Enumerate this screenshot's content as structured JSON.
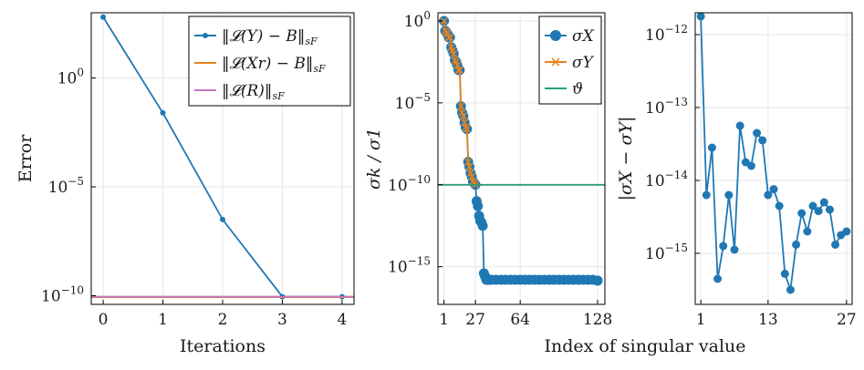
{
  "chart_data": [
    {
      "type": "line",
      "id": "iterations-error",
      "xlabel": "Iterations",
      "ylabel": "Error",
      "yscale": "log",
      "xlim": [
        -0.2,
        4.2
      ],
      "ylim": [
        -10.4,
        3.0
      ],
      "xticks": [
        0,
        1,
        2,
        3,
        4
      ],
      "xtick_labels": [
        "0",
        "1",
        "2",
        "3",
        "4"
      ],
      "yticks": [
        -10,
        -5,
        0
      ],
      "ytick_base": "10",
      "ytick_exps": [
        "−10",
        "−5",
        "0"
      ],
      "series": [
        {
          "name": "‖𝓛(Y) − B‖sF",
          "color": "#1f78b4",
          "x": [
            0,
            1,
            2,
            3,
            4
          ],
          "log10": [
            2.8,
            -1.6,
            -6.5,
            -10.05,
            -10.05
          ],
          "markers": true
        },
        {
          "name": "‖𝓛(Xr) − B‖sF",
          "color": "#e6821e",
          "x": [
            -0.2,
            4.2
          ],
          "log10": [
            -10.07,
            -10.07
          ],
          "markers": false
        },
        {
          "name": "‖𝓛(R)‖sF",
          "color": "#c875c4",
          "x": [
            -0.2,
            4.2
          ],
          "log10": [
            -10.05,
            -10.05
          ],
          "markers": false
        }
      ],
      "legend": [
        "‖𝓛(Y) − B‖",
        "‖𝓛(Xr) − B‖",
        "‖𝓛(R)‖"
      ],
      "legend_sub": "sF",
      "legend_position": "top-right"
    },
    {
      "type": "scatter",
      "id": "singular-values",
      "xlabel": "",
      "ylabel": "σk / σ1",
      "yscale": "log",
      "xlim": [
        -4,
        134
      ],
      "ylim": [
        -17.3,
        0.5
      ],
      "xticks": [
        1,
        27,
        64,
        128
      ],
      "xtick_labels": [
        "1",
        "27",
        "64",
        "128"
      ],
      "yticks": [
        -15,
        -10,
        -5,
        0
      ],
      "ytick_base": "10",
      "ytick_exps": [
        "−15",
        "−10",
        "−5",
        "0"
      ],
      "threshold": -10,
      "series": [
        {
          "name": "σX",
          "color": "#1f78b4",
          "x": [
            1,
            2,
            3,
            4,
            5,
            6,
            7,
            8,
            9,
            10,
            11,
            12,
            13,
            14,
            15,
            16,
            17,
            18,
            19,
            20,
            21,
            22,
            23,
            24,
            25,
            26,
            27,
            28,
            29,
            30,
            31,
            32,
            33,
            34,
            35,
            36,
            37,
            38,
            40,
            44,
            48,
            52,
            56,
            60,
            64,
            68,
            72,
            76,
            80,
            84,
            88,
            92,
            96,
            100,
            104,
            108,
            112,
            116,
            120,
            124,
            128
          ],
          "log10": [
            0.0,
            -0.6,
            -0.7,
            -0.8,
            -1.0,
            -1.0,
            -1.6,
            -1.8,
            -2.0,
            -2.4,
            -2.5,
            -2.7,
            -3.0,
            -3.0,
            -5.2,
            -5.6,
            -5.8,
            -6.2,
            -6.5,
            -6.6,
            -8.6,
            -8.9,
            -9.3,
            -9.5,
            -9.8,
            -9.9,
            -10.0,
            -11.0,
            -11.3,
            -11.9,
            -12.2,
            -12.3,
            -12.5,
            -15.4,
            -15.6,
            -15.8,
            -15.8,
            -15.8,
            -15.8,
            -15.8,
            -15.8,
            -15.8,
            -15.8,
            -15.8,
            -15.8,
            -15.8,
            -15.8,
            -15.8,
            -15.8,
            -15.8,
            -15.8,
            -15.8,
            -15.8,
            -15.8,
            -15.8,
            -15.8,
            -15.8,
            -15.8,
            -15.8,
            -15.8,
            -15.85
          ]
        },
        {
          "name": "σY",
          "color": "#e6821e",
          "x": [
            1,
            2,
            3,
            4,
            5,
            6,
            7,
            8,
            9,
            10,
            11,
            12,
            13,
            14,
            15,
            16,
            17,
            18,
            19,
            20,
            21,
            22,
            23,
            24,
            25,
            26,
            27
          ],
          "log10": [
            0.0,
            -0.6,
            -0.7,
            -0.8,
            -1.0,
            -1.0,
            -1.6,
            -1.8,
            -2.0,
            -2.4,
            -2.5,
            -2.7,
            -3.0,
            -3.0,
            -5.2,
            -5.6,
            -5.8,
            -6.2,
            -6.5,
            -6.6,
            -8.6,
            -8.9,
            -9.3,
            -9.5,
            -9.8,
            -9.9,
            -10.0
          ]
        },
        {
          "name": "ϑ",
          "color": "#2a9d7a",
          "x": [
            -4,
            134
          ],
          "log10": [
            -10,
            -10
          ]
        }
      ],
      "legend": [
        "σX",
        "σY",
        "ϑ"
      ],
      "legend_position": "top-right"
    },
    {
      "type": "line",
      "id": "sigma-difference",
      "xlabel": "",
      "ylabel": "|σX − σY|",
      "yscale": "log",
      "xlim": [
        0,
        28
      ],
      "ylim": [
        -15.7,
        -11.7
      ],
      "xticks": [
        1,
        13,
        27
      ],
      "xtick_labels": [
        "1",
        "13",
        "27"
      ],
      "yticks": [
        -15,
        -14,
        -13,
        -12
      ],
      "ytick_base": "10",
      "ytick_exps": [
        "−15",
        "−14",
        "−13",
        "−12"
      ],
      "series": [
        {
          "name": "|σX − σY|",
          "color": "#1f78b4",
          "x": [
            1,
            2,
            3,
            4,
            5,
            6,
            7,
            8,
            9,
            10,
            11,
            12,
            13,
            14,
            15,
            16,
            17,
            18,
            19,
            20,
            21,
            22,
            23,
            24,
            25,
            26,
            27
          ],
          "log10": [
            -11.75,
            -14.2,
            -13.55,
            -15.35,
            -14.9,
            -14.2,
            -14.95,
            -13.25,
            -13.75,
            -13.8,
            -13.35,
            -13.45,
            -14.2,
            -14.12,
            -14.35,
            -15.28,
            -15.5,
            -14.88,
            -14.45,
            -14.7,
            -14.35,
            -14.42,
            -14.3,
            -14.4,
            -14.88,
            -14.75,
            -14.7
          ]
        }
      ]
    }
  ],
  "shared_xlabel": "Index of singular value"
}
